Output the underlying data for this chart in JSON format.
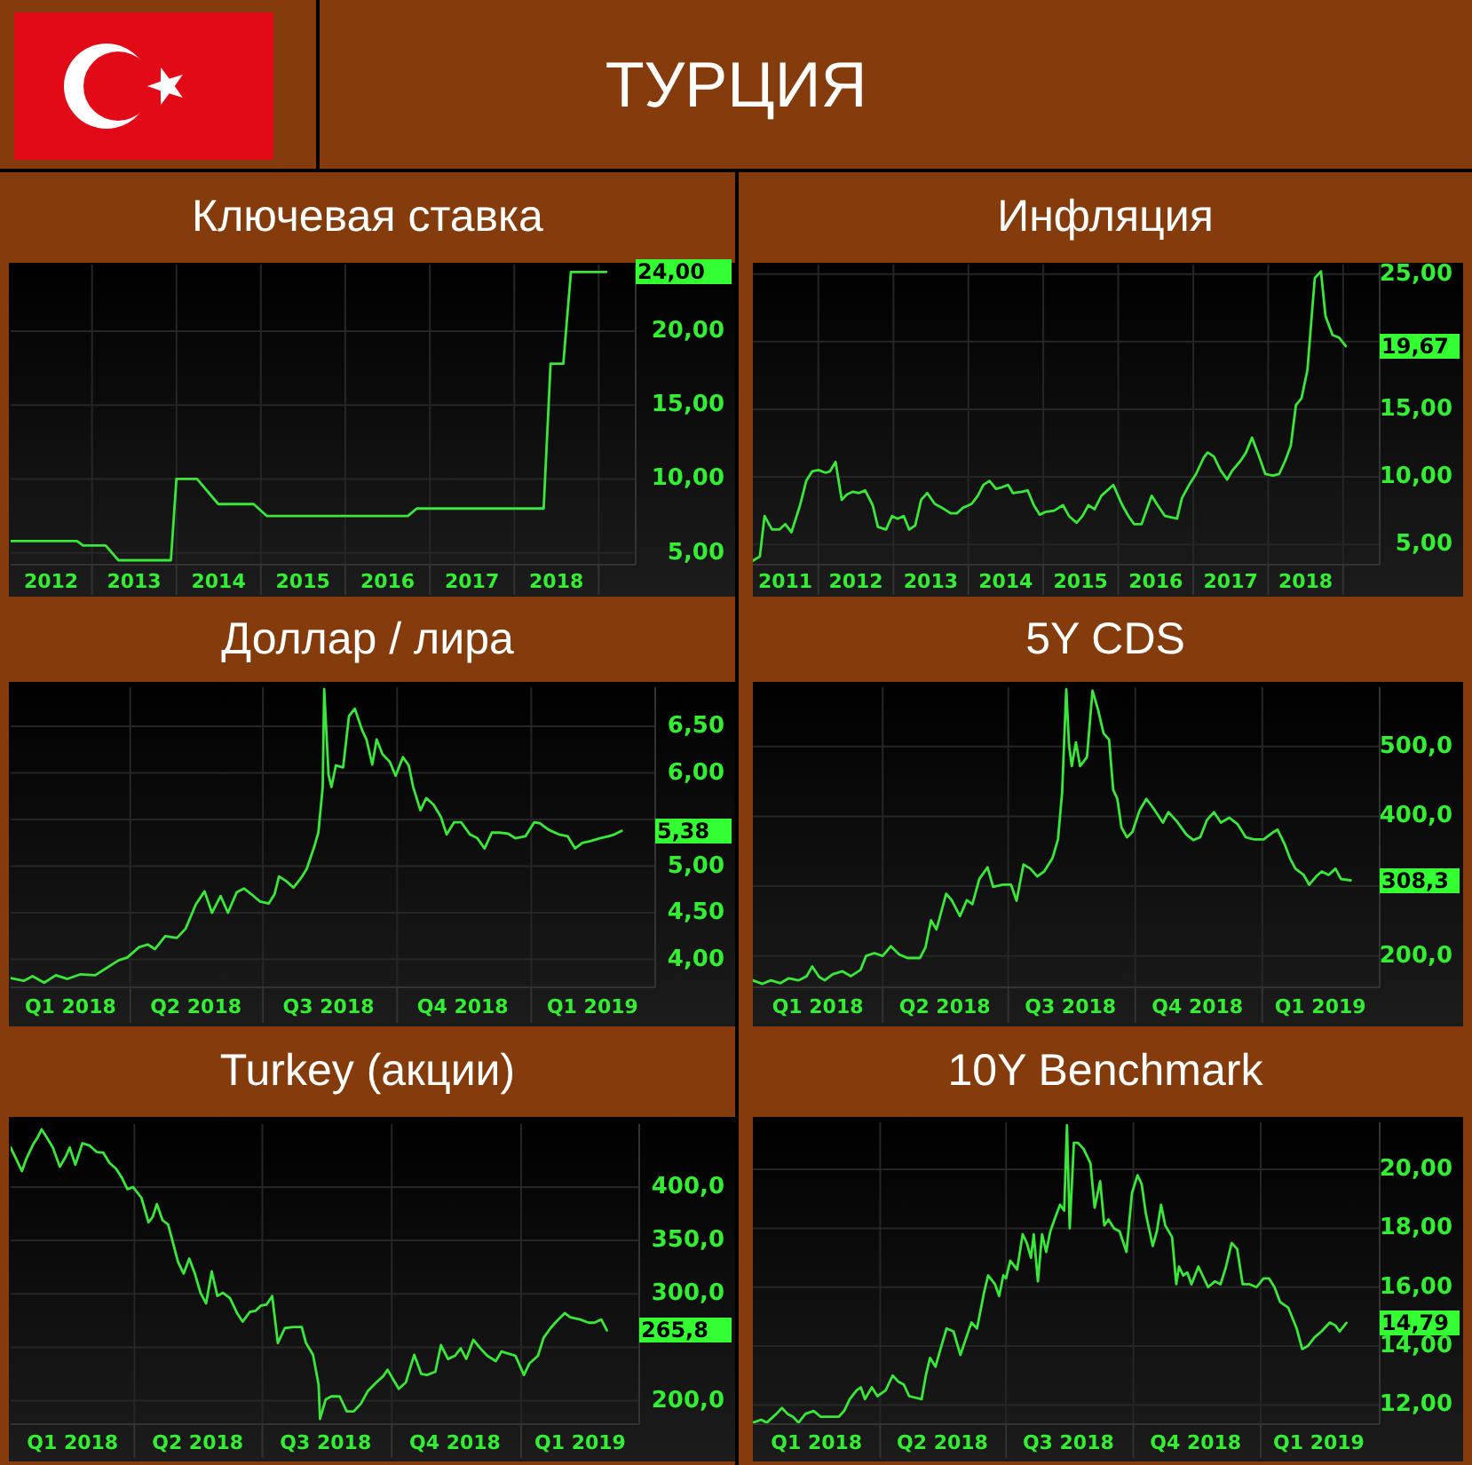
{
  "chart_data": [
    {
      "type": "other",
      "title": "ТУРЦИЯ"
    },
    {
      "type": "line",
      "title": "Ключевая ставка",
      "color": "#3ae83a",
      "grid": true,
      "x": [
        "2012-01-15",
        "2012-10-28",
        "2012-11-23",
        "2013-03-01",
        "2013-04-25",
        "2013-12-08",
        "2014-01-01",
        "2014-03-31",
        "2014-07-01",
        "2014-12-01",
        "2015-01-26",
        "2016-09-28",
        "2016-11-05",
        "2018-05-08",
        "2018-06-07",
        "2018-08-01",
        "2018-09-03",
        "2019-02-03"
      ],
      "values": [
        5.8,
        5.8,
        5.5,
        5.5,
        4.5,
        4.5,
        10,
        10,
        8.3,
        8.3,
        7.5,
        7.5,
        8,
        8,
        17.8,
        17.8,
        24,
        24
      ],
      "value_labels": [
        null,
        null,
        null,
        null,
        null,
        null,
        null,
        null,
        null,
        null,
        null,
        null,
        null,
        null,
        null,
        null,
        null,
        "24,00"
      ],
      "xlim": [
        "2012-01-15",
        "2019-06-10"
      ],
      "xticks": [
        {
          "value": "2012-07-08",
          "label": "2012"
        },
        {
          "value": "2013-01-01",
          "label": null
        },
        {
          "value": "2013-07-02",
          "label": "2013"
        },
        {
          "value": "2014-01-01",
          "label": null
        },
        {
          "value": "2014-07-02",
          "label": "2014"
        },
        {
          "value": "2015-01-01",
          "label": null
        },
        {
          "value": "2015-07-02",
          "label": "2015"
        },
        {
          "value": "2016-01-01",
          "label": null
        },
        {
          "value": "2016-07-02",
          "label": "2016"
        },
        {
          "value": "2017-01-01",
          "label": null
        },
        {
          "value": "2017-07-02",
          "label": "2017"
        },
        {
          "value": "2018-01-01",
          "label": null
        },
        {
          "value": "2018-07-02",
          "label": "2018"
        },
        {
          "value": "2019-01-01",
          "label": null
        }
      ],
      "ylim": [
        4.2,
        24.5
      ],
      "yticks": [
        {
          "value": 5,
          "label": "5,00"
        },
        {
          "value": 10,
          "label": "10,00"
        },
        {
          "value": 15,
          "label": "15,00"
        },
        {
          "value": 20,
          "label": "20,00"
        }
      ]
    },
    {
      "type": "line",
      "title": "Инфляция",
      "color": "#3ae83a",
      "grid": true,
      "x": [
        "2011-02-16",
        "2011-03-22",
        "2011-04-14",
        "2011-05-20",
        "2011-06-25",
        "2011-07-24",
        "2011-08-23",
        "2011-10-04",
        "2011-11-03",
        "2011-12-02",
        "2012-01-01",
        "2012-02-06",
        "2012-02-26",
        "2012-03-25",
        "2012-04-24",
        "2012-05-20",
        "2012-06-18",
        "2012-07-17",
        "2012-08-16",
        "2012-09-22",
        "2012-10-17",
        "2012-11-26",
        "2012-12-25",
        "2013-01-21",
        "2013-02-20",
        "2013-03-19",
        "2013-04-17",
        "2013-05-16",
        "2013-06-15",
        "2013-07-21",
        "2013-08-26",
        "2013-10-07",
        "2013-11-06",
        "2013-12-05",
        "2014-01-17",
        "2014-02-16",
        "2014-03-15",
        "2014-04-14",
        "2014-05-16",
        "2014-06-08",
        "2014-07-14",
        "2014-08-06",
        "2014-09-18",
        "2014-10-17",
        "2014-11-16",
        "2014-12-15",
        "2015-01-11",
        "2015-02-23",
        "2015-04-07",
        "2015-05-06",
        "2015-06-12",
        "2015-07-11",
        "2015-08-09",
        "2015-09-08",
        "2015-10-11",
        "2015-12-08",
        "2016-01-21",
        "2016-02-20",
        "2016-03-19",
        "2016-04-24",
        "2016-06-12",
        "2016-07-11",
        "2016-08-16",
        "2016-10-14",
        "2016-11-06",
        "2016-12-15",
        "2017-01-14",
        "2017-02-20",
        "2017-03-12",
        "2017-04-11",
        "2017-05-13",
        "2017-06-15",
        "2017-07-07",
        "2017-08-20",
        "2017-09-15",
        "2017-10-14",
        "2017-11-13",
        "2017-12-18",
        "2018-01-24",
        "2018-02-23",
        "2018-03-25",
        "2018-04-21",
        "2018-05-16",
        "2018-06-12",
        "2018-07-11",
        "2018-08-03",
        "2018-08-16",
        "2018-09-15",
        "2018-10-07",
        "2018-11-10",
        "2018-12-12",
        "2019-01-14"
      ],
      "values": [
        3.8,
        4.1,
        7.1,
        6.1,
        6.1,
        6.5,
        5.9,
        7.9,
        9.7,
        10.4,
        10.5,
        10.3,
        10.4,
        11.1,
        8.3,
        8.7,
        8.9,
        8.8,
        9.0,
        7.9,
        6.3,
        6.1,
        7.1,
        6.9,
        7.1,
        6.1,
        6.4,
        8.3,
        8.8,
        8.0,
        7.7,
        7.3,
        7.3,
        7.7,
        8.0,
        8.6,
        9.4,
        9.7,
        9.1,
        9.2,
        9.4,
        8.8,
        8.9,
        9.0,
        7.9,
        7.2,
        7.4,
        7.5,
        7.9,
        7.1,
        6.6,
        7.1,
        7.9,
        7.6,
        8.6,
        9.4,
        7.9,
        7.1,
        6.5,
        6.5,
        8.6,
        7.9,
        7.1,
        6.9,
        8.4,
        9.5,
        10.2,
        11.4,
        11.8,
        11.5,
        10.5,
        9.8,
        10.4,
        11.2,
        11.8,
        12.9,
        11.7,
        10.2,
        10.1,
        10.2,
        11.2,
        12.3,
        15.3,
        15.8,
        17.9,
        22.3,
        24.7,
        25.2,
        21.9,
        20.5,
        20.3,
        19.67
      ],
      "value_labels": [
        null,
        null,
        null,
        null,
        null,
        null,
        null,
        null,
        null,
        null,
        null,
        null,
        null,
        null,
        null,
        null,
        null,
        null,
        null,
        null,
        null,
        null,
        null,
        null,
        null,
        null,
        null,
        null,
        null,
        null,
        null,
        null,
        null,
        null,
        null,
        null,
        null,
        null,
        null,
        null,
        null,
        null,
        null,
        null,
        null,
        null,
        null,
        null,
        null,
        null,
        null,
        null,
        null,
        null,
        null,
        null,
        null,
        null,
        null,
        null,
        null,
        null,
        null,
        null,
        null,
        null,
        null,
        null,
        null,
        null,
        null,
        null,
        null,
        null,
        null,
        null,
        null,
        null,
        null,
        null,
        null,
        null,
        null,
        null,
        null,
        null,
        null,
        null,
        null,
        null,
        null,
        "19,67"
      ],
      "xlim": [
        "2011-02-16",
        "2019-06-28"
      ],
      "xticks": [
        {
          "value": "2011-07-24",
          "label": "2011"
        },
        {
          "value": "2012-01-01",
          "label": null
        },
        {
          "value": "2012-07-02",
          "label": "2012"
        },
        {
          "value": "2013-01-01",
          "label": null
        },
        {
          "value": "2013-07-02",
          "label": "2013"
        },
        {
          "value": "2014-01-01",
          "label": null
        },
        {
          "value": "2014-07-02",
          "label": "2014"
        },
        {
          "value": "2015-01-01",
          "label": null
        },
        {
          "value": "2015-07-02",
          "label": "2015"
        },
        {
          "value": "2016-01-01",
          "label": null
        },
        {
          "value": "2016-07-02",
          "label": "2016"
        },
        {
          "value": "2017-01-01",
          "label": null
        },
        {
          "value": "2017-07-02",
          "label": "2017"
        },
        {
          "value": "2018-01-01",
          "label": null
        },
        {
          "value": "2018-07-02",
          "label": "2018"
        },
        {
          "value": "2019-01-01",
          "label": null
        }
      ],
      "ylim": [
        3.5,
        25.7
      ],
      "yticks": [
        {
          "value": 5,
          "label": "5,00"
        },
        {
          "value": 10,
          "label": "10,00"
        },
        {
          "value": 15,
          "label": "15,00"
        },
        {
          "value": 20,
          "label": null
        },
        {
          "value": 25,
          "label": "25,00"
        }
      ]
    },
    {
      "type": "line",
      "title": "Доллар / лира",
      "color": "#3ae83a",
      "grid": true,
      "x": [
        "2018-01-09",
        "2018-01-18",
        "2018-01-24",
        "2018-02-01",
        "2018-02-09",
        "2018-02-17",
        "2018-02-26",
        "2018-03-08",
        "2018-03-16",
        "2018-03-24",
        "2018-03-30",
        "2018-04-07",
        "2018-04-13",
        "2018-04-18",
        "2018-04-25",
        "2018-05-03",
        "2018-05-09",
        "2018-05-16",
        "2018-05-22",
        "2018-05-27",
        "2018-06-02",
        "2018-06-07",
        "2018-06-13",
        "2018-06-18",
        "2018-06-23",
        "2018-06-29",
        "2018-07-05",
        "2018-07-09",
        "2018-07-12",
        "2018-07-17",
        "2018-07-22",
        "2018-07-27",
        "2018-07-31",
        "2018-08-05",
        "2018-08-08",
        "2018-08-11",
        "2018-08-12",
        "2018-08-15",
        "2018-08-17",
        "2018-08-20",
        "2018-08-25",
        "2018-08-29",
        "2018-09-02",
        "2018-09-07",
        "2018-09-10",
        "2018-09-14",
        "2018-09-17",
        "2018-09-21",
        "2018-09-26",
        "2018-09-30",
        "2018-10-05",
        "2018-10-09",
        "2018-10-12",
        "2018-10-17",
        "2018-10-21",
        "2018-10-26",
        "2018-10-31",
        "2018-11-04",
        "2018-11-09",
        "2018-11-14",
        "2018-11-20",
        "2018-11-25",
        "2018-11-30",
        "2018-12-05",
        "2018-12-10",
        "2018-12-16",
        "2018-12-21",
        "2018-12-28",
        "2019-01-03",
        "2019-01-07",
        "2019-01-13",
        "2019-01-20",
        "2019-01-26",
        "2019-01-31",
        "2019-02-05",
        "2019-02-11",
        "2019-02-17",
        "2019-02-23",
        "2019-02-27",
        "2019-03-04"
      ],
      "values": [
        3.8,
        3.77,
        3.82,
        3.75,
        3.83,
        3.79,
        3.84,
        3.83,
        3.91,
        3.99,
        4.02,
        4.13,
        4.16,
        4.11,
        4.25,
        4.23,
        4.33,
        4.59,
        4.73,
        4.5,
        4.68,
        4.5,
        4.72,
        4.76,
        4.7,
        4.62,
        4.6,
        4.7,
        4.89,
        4.84,
        4.77,
        4.87,
        4.97,
        5.2,
        5.36,
        5.85,
        6.9,
        5.98,
        5.85,
        6.08,
        6.06,
        6.61,
        6.69,
        6.46,
        6.36,
        6.09,
        6.36,
        6.2,
        6.12,
        5.97,
        6.17,
        6.08,
        5.85,
        5.6,
        5.73,
        5.66,
        5.53,
        5.34,
        5.47,
        5.47,
        5.34,
        5.3,
        5.19,
        5.36,
        5.36,
        5.35,
        5.3,
        5.32,
        5.47,
        5.46,
        5.39,
        5.34,
        5.32,
        5.19,
        5.25,
        5.27,
        5.3,
        5.32,
        5.34,
        5.38
      ],
      "value_labels": [
        null,
        null,
        null,
        null,
        null,
        null,
        null,
        null,
        null,
        null,
        null,
        null,
        null,
        null,
        null,
        null,
        null,
        null,
        null,
        null,
        null,
        null,
        null,
        null,
        null,
        null,
        null,
        null,
        null,
        null,
        null,
        null,
        null,
        null,
        null,
        null,
        null,
        null,
        null,
        null,
        null,
        null,
        null,
        null,
        null,
        null,
        null,
        null,
        null,
        null,
        null,
        null,
        null,
        null,
        null,
        null,
        null,
        null,
        null,
        null,
        null,
        null,
        null,
        null,
        null,
        null,
        null,
        null,
        null,
        null,
        null,
        null,
        null,
        null,
        null,
        null,
        null,
        null,
        null,
        "5,38"
      ],
      "xlim": [
        "2018-01-09",
        "2019-03-27"
      ],
      "xticks": [
        {
          "value": "2018-02-19",
          "label": "Q1 2018"
        },
        {
          "value": "2018-04-01",
          "label": null
        },
        {
          "value": "2018-05-16",
          "label": "Q2 2018"
        },
        {
          "value": "2018-07-01",
          "label": null
        },
        {
          "value": "2018-08-15",
          "label": "Q3 2018"
        },
        {
          "value": "2018-10-01",
          "label": null
        },
        {
          "value": "2018-11-15",
          "label": "Q4 2018"
        },
        {
          "value": "2019-01-01",
          "label": null
        },
        {
          "value": "2019-02-12",
          "label": "Q1 2019"
        }
      ],
      "ylim": [
        3.7,
        6.92
      ],
      "yticks": [
        {
          "value": 4,
          "label": "4,00"
        },
        {
          "value": 4.5,
          "label": "4,50"
        },
        {
          "value": 5,
          "label": "5,00"
        },
        {
          "value": 5.5,
          "label": null
        },
        {
          "value": 6,
          "label": "6,00"
        },
        {
          "value": 6.5,
          "label": "6,50"
        }
      ]
    },
    {
      "type": "line",
      "title": "5Y CDS",
      "color": "#3ae83a",
      "grid": true,
      "x": [
        "2017-12-28",
        "2018-01-04",
        "2018-01-10",
        "2018-01-17",
        "2018-01-23",
        "2018-01-30",
        "2018-02-05",
        "2018-02-09",
        "2018-02-14",
        "2018-02-18",
        "2018-02-24",
        "2018-03-03",
        "2018-03-09",
        "2018-03-16",
        "2018-03-20",
        "2018-03-26",
        "2018-04-01",
        "2018-04-07",
        "2018-04-13",
        "2018-04-19",
        "2018-04-28",
        "2018-05-02",
        "2018-05-06",
        "2018-05-10",
        "2018-05-17",
        "2018-05-21",
        "2018-05-27",
        "2018-06-01",
        "2018-06-05",
        "2018-06-10",
        "2018-06-16",
        "2018-06-20",
        "2018-06-27",
        "2018-07-03",
        "2018-07-07",
        "2018-07-12",
        "2018-07-17",
        "2018-07-22",
        "2018-07-27",
        "2018-08-02",
        "2018-08-06",
        "2018-08-09",
        "2018-08-12",
        "2018-08-14",
        "2018-08-16",
        "2018-08-19",
        "2018-08-22",
        "2018-08-27",
        "2018-08-31",
        "2018-09-04",
        "2018-09-08",
        "2018-09-12",
        "2018-09-15",
        "2018-09-18",
        "2018-09-21",
        "2018-09-25",
        "2018-09-29",
        "2018-10-04",
        "2018-10-09",
        "2018-10-14",
        "2018-10-21",
        "2018-10-25",
        "2018-10-31",
        "2018-11-07",
        "2018-11-12",
        "2018-11-17",
        "2018-11-22",
        "2018-11-27",
        "2018-12-02",
        "2018-12-08",
        "2018-12-14",
        "2018-12-20",
        "2018-12-26",
        "2019-01-02",
        "2019-01-08",
        "2019-01-12",
        "2019-01-17",
        "2019-01-21",
        "2019-01-25",
        "2019-01-31",
        "2019-02-04",
        "2019-02-09",
        "2019-02-13",
        "2019-02-18",
        "2019-02-23",
        "2019-02-27",
        "2019-03-06"
      ],
      "values": [
        165,
        160,
        165,
        161,
        168,
        165,
        171,
        185,
        170,
        165,
        174,
        178,
        171,
        180,
        200,
        204,
        200,
        214,
        202,
        197,
        197,
        212,
        251,
        238,
        289,
        280,
        257,
        280,
        274,
        310,
        327,
        299,
        302,
        302,
        279,
        331,
        325,
        314,
        321,
        340,
        367,
        434,
        582,
        502,
        472,
        506,
        472,
        485,
        580,
        553,
        519,
        510,
        438,
        425,
        384,
        370,
        378,
        408,
        425,
        412,
        391,
        406,
        393,
        374,
        366,
        370,
        395,
        406,
        391,
        398,
        389,
        370,
        367,
        367,
        376,
        381,
        361,
        340,
        325,
        316,
        302,
        314,
        321,
        316,
        325,
        310,
        308.3
      ],
      "value_labels": [
        null,
        null,
        null,
        null,
        null,
        null,
        null,
        null,
        null,
        null,
        null,
        null,
        null,
        null,
        null,
        null,
        null,
        null,
        null,
        null,
        null,
        null,
        null,
        null,
        null,
        null,
        null,
        null,
        null,
        null,
        null,
        null,
        null,
        null,
        null,
        null,
        null,
        null,
        null,
        null,
        null,
        null,
        null,
        null,
        null,
        null,
        null,
        null,
        null,
        null,
        null,
        null,
        null,
        null,
        null,
        null,
        null,
        null,
        null,
        null,
        null,
        null,
        null,
        null,
        null,
        null,
        null,
        null,
        null,
        null,
        null,
        null,
        null,
        null,
        null,
        null,
        null,
        null,
        null,
        null,
        null,
        null,
        null,
        null,
        null,
        null,
        "308,3"
      ],
      "xlim": [
        "2017-12-28",
        "2019-03-27"
      ],
      "xticks": [
        {
          "value": "2018-02-13",
          "label": "Q1 2018"
        },
        {
          "value": "2018-04-01",
          "label": null
        },
        {
          "value": "2018-05-16",
          "label": "Q2 2018"
        },
        {
          "value": "2018-07-01",
          "label": null
        },
        {
          "value": "2018-08-15",
          "label": "Q3 2018"
        },
        {
          "value": "2018-10-01",
          "label": null
        },
        {
          "value": "2018-11-15",
          "label": "Q4 2018"
        },
        {
          "value": "2019-01-01",
          "label": null
        },
        {
          "value": "2019-02-12",
          "label": "Q1 2019"
        }
      ],
      "ylim": [
        155,
        585
      ],
      "yticks": [
        {
          "value": 200,
          "label": "200,0"
        },
        {
          "value": 300,
          "label": null
        },
        {
          "value": 400,
          "label": "400,0"
        },
        {
          "value": 500,
          "label": "500,0"
        }
      ]
    },
    {
      "type": "line",
      "title": "Turkey (акции)",
      "color": "#3ae83a",
      "grid": true,
      "x": [
        "2018-01-03",
        "2018-01-07",
        "2018-01-11",
        "2018-01-14",
        "2018-01-19",
        "2018-01-22",
        "2018-01-25",
        "2018-01-28",
        "2018-02-02",
        "2018-02-07",
        "2018-02-11",
        "2018-02-14",
        "2018-02-18",
        "2018-02-23",
        "2018-02-28",
        "2018-03-05",
        "2018-03-10",
        "2018-03-14",
        "2018-03-19",
        "2018-03-23",
        "2018-03-27",
        "2018-03-31",
        "2018-04-06",
        "2018-04-11",
        "2018-04-14",
        "2018-04-17",
        "2018-04-21",
        "2018-04-25",
        "2018-05-02",
        "2018-05-06",
        "2018-05-10",
        "2018-05-14",
        "2018-05-18",
        "2018-05-22",
        "2018-05-26",
        "2018-05-30",
        "2018-06-03",
        "2018-06-08",
        "2018-06-13",
        "2018-06-17",
        "2018-06-22",
        "2018-06-26",
        "2018-06-30",
        "2018-07-04",
        "2018-07-08",
        "2018-07-12",
        "2018-07-17",
        "2018-07-23",
        "2018-07-29",
        "2018-08-01",
        "2018-08-06",
        "2018-08-10",
        "2018-08-11",
        "2018-08-15",
        "2018-08-19",
        "2018-08-25",
        "2018-08-30",
        "2018-09-04",
        "2018-09-09",
        "2018-09-14",
        "2018-09-20",
        "2018-09-25",
        "2018-09-28",
        "2018-10-02",
        "2018-10-06",
        "2018-10-11",
        "2018-10-17",
        "2018-10-22",
        "2018-10-26",
        "2018-11-01",
        "2018-11-05",
        "2018-11-10",
        "2018-11-15",
        "2018-11-19",
        "2018-11-23",
        "2018-11-28",
        "2018-12-03",
        "2018-12-08",
        "2018-12-14",
        "2018-12-18",
        "2018-12-23",
        "2018-12-28",
        "2019-01-03",
        "2019-01-07",
        "2019-01-13",
        "2019-01-17",
        "2019-01-22",
        "2019-01-26",
        "2019-02-01",
        "2019-02-05",
        "2019-02-12",
        "2019-02-18",
        "2019-02-22",
        "2019-02-27",
        "2019-03-03"
      ],
      "values": [
        437,
        426,
        415,
        426,
        440,
        446,
        454,
        448,
        437,
        419,
        428,
        437,
        421,
        441,
        439,
        433,
        432,
        423,
        417,
        409,
        398,
        400,
        390,
        367,
        372,
        384,
        369,
        365,
        330,
        319,
        333,
        319,
        301,
        291,
        321,
        298,
        301,
        296,
        282,
        274,
        283,
        284,
        289,
        290,
        298,
        254,
        268,
        269,
        269,
        254,
        243,
        215,
        183,
        201,
        204,
        204,
        190,
        190,
        197,
        209,
        217,
        223,
        229,
        220,
        211,
        217,
        243,
        225,
        224,
        227,
        252,
        239,
        242,
        249,
        239,
        257,
        249,
        242,
        237,
        246,
        244,
        242,
        224,
        235,
        242,
        259,
        268,
        274,
        282,
        278,
        276,
        273,
        273,
        276,
        265.8
      ],
      "value_labels": [
        null,
        null,
        null,
        null,
        null,
        null,
        null,
        null,
        null,
        null,
        null,
        null,
        null,
        null,
        null,
        null,
        null,
        null,
        null,
        null,
        null,
        null,
        null,
        null,
        null,
        null,
        null,
        null,
        null,
        null,
        null,
        null,
        null,
        null,
        null,
        null,
        null,
        null,
        null,
        null,
        null,
        null,
        null,
        null,
        null,
        null,
        null,
        null,
        null,
        null,
        null,
        null,
        null,
        null,
        null,
        null,
        null,
        null,
        null,
        null,
        null,
        null,
        null,
        null,
        null,
        null,
        null,
        null,
        null,
        null,
        null,
        null,
        null,
        null,
        null,
        null,
        null,
        null,
        null,
        null,
        null,
        null,
        null,
        null,
        null,
        null,
        null,
        null,
        null,
        null,
        null,
        null,
        null,
        null,
        "265,8"
      ],
      "xlim": [
        "2018-01-03",
        "2019-03-26"
      ],
      "xticks": [
        {
          "value": "2018-02-16",
          "label": "Q1 2018"
        },
        {
          "value": "2018-04-01",
          "label": null
        },
        {
          "value": "2018-05-16",
          "label": "Q2 2018"
        },
        {
          "value": "2018-07-01",
          "label": null
        },
        {
          "value": "2018-08-15",
          "label": "Q3 2018"
        },
        {
          "value": "2018-10-01",
          "label": null
        },
        {
          "value": "2018-11-15",
          "label": "Q4 2018"
        },
        {
          "value": "2019-01-01",
          "label": null
        },
        {
          "value": "2019-02-12",
          "label": "Q1 2019"
        }
      ],
      "ylim": [
        178,
        459
      ],
      "yticks": [
        {
          "value": 200,
          "label": "200,0"
        },
        {
          "value": 250,
          "label": null
        },
        {
          "value": 300,
          "label": "300,0"
        },
        {
          "value": 350,
          "label": "350,0"
        },
        {
          "value": 400,
          "label": "400,0"
        }
      ]
    },
    {
      "type": "line",
      "title": "10Y Benchmark",
      "color": "#3ae83a",
      "grid": true,
      "x": [
        "2017-12-30",
        "2018-01-05",
        "2018-01-09",
        "2018-01-16",
        "2018-01-20",
        "2018-01-24",
        "2018-01-28",
        "2018-02-01",
        "2018-02-06",
        "2018-02-12",
        "2018-02-17",
        "2018-02-23",
        "2018-03-02",
        "2018-03-06",
        "2018-03-10",
        "2018-03-15",
        "2018-03-18",
        "2018-03-21",
        "2018-03-26",
        "2018-03-30",
        "2018-04-05",
        "2018-04-10",
        "2018-04-14",
        "2018-04-18",
        "2018-04-22",
        "2018-05-01",
        "2018-05-04",
        "2018-05-07",
        "2018-05-11",
        "2018-05-14",
        "2018-05-19",
        "2018-05-24",
        "2018-05-29",
        "2018-06-03",
        "2018-06-06",
        "2018-06-10",
        "2018-06-15",
        "2018-06-18",
        "2018-06-23",
        "2018-06-26",
        "2018-06-29",
        "2018-07-01",
        "2018-07-04",
        "2018-07-09",
        "2018-07-13",
        "2018-07-16",
        "2018-07-19",
        "2018-07-21",
        "2018-07-24",
        "2018-07-27",
        "2018-07-30",
        "2018-08-02",
        "2018-08-05",
        "2018-08-09",
        "2018-08-12",
        "2018-08-14",
        "2018-08-16",
        "2018-08-19",
        "2018-08-22",
        "2018-08-26",
        "2018-08-31",
        "2018-09-03",
        "2018-09-07",
        "2018-09-10",
        "2018-09-13",
        "2018-09-17",
        "2018-09-21",
        "2018-09-26",
        "2018-09-30",
        "2018-10-04",
        "2018-10-07",
        "2018-10-10",
        "2018-10-15",
        "2018-10-18",
        "2018-10-21",
        "2018-10-24",
        "2018-10-29",
        "2018-11-01",
        "2018-11-03",
        "2018-11-06",
        "2018-11-09",
        "2018-11-12",
        "2018-11-17",
        "2018-11-20",
        "2018-11-24",
        "2018-11-29",
        "2018-12-03",
        "2018-12-07",
        "2018-12-11",
        "2018-12-15",
        "2018-12-19",
        "2018-12-24",
        "2018-12-29",
        "2019-01-03",
        "2019-01-07",
        "2019-01-11",
        "2019-01-15",
        "2019-01-21",
        "2019-01-27",
        "2019-01-31",
        "2019-02-04",
        "2019-02-09",
        "2019-02-14",
        "2019-02-20",
        "2019-02-24",
        "2019-02-27",
        "2019-03-04"
      ],
      "values": [
        11.4,
        11.5,
        11.4,
        11.7,
        11.9,
        11.7,
        11.6,
        11.4,
        11.7,
        11.8,
        11.6,
        11.6,
        11.6,
        11.8,
        12.2,
        12.5,
        12.6,
        12.2,
        12.6,
        12.3,
        12.5,
        13.0,
        12.8,
        12.7,
        12.3,
        12.2,
        13.0,
        13.6,
        13.3,
        13.8,
        14.6,
        14.5,
        13.7,
        14.4,
        14.8,
        14.6,
        15.8,
        16.4,
        16.1,
        15.7,
        16.4,
        16.3,
        16.9,
        16.6,
        17.8,
        17.5,
        17.0,
        17.8,
        16.2,
        17.8,
        17.2,
        17.9,
        18.3,
        18.8,
        18.6,
        21.5,
        18.0,
        20.9,
        20.9,
        20.7,
        20.2,
        18.7,
        19.6,
        18.1,
        18.3,
        18.0,
        17.9,
        17.2,
        19.2,
        19.8,
        19.5,
        18.5,
        17.4,
        17.9,
        18.8,
        18.1,
        17.7,
        16.1,
        16.7,
        16.4,
        16.5,
        16.1,
        16.7,
        16.4,
        16.0,
        16.2,
        16.1,
        16.7,
        17.5,
        17.3,
        16.1,
        16.1,
        16.0,
        16.3,
        16.3,
        16.0,
        15.5,
        15.3,
        14.6,
        13.9,
        14.0,
        14.3,
        14.5,
        14.8,
        14.7,
        14.5,
        14.79
      ],
      "value_labels": [
        null,
        null,
        null,
        null,
        null,
        null,
        null,
        null,
        null,
        null,
        null,
        null,
        null,
        null,
        null,
        null,
        null,
        null,
        null,
        null,
        null,
        null,
        null,
        null,
        null,
        null,
        null,
        null,
        null,
        null,
        null,
        null,
        null,
        null,
        null,
        null,
        null,
        null,
        null,
        null,
        null,
        null,
        null,
        null,
        null,
        null,
        null,
        null,
        null,
        null,
        null,
        null,
        null,
        null,
        null,
        null,
        null,
        null,
        null,
        null,
        null,
        null,
        null,
        null,
        null,
        null,
        null,
        null,
        null,
        null,
        null,
        null,
        null,
        null,
        null,
        null,
        null,
        null,
        null,
        null,
        null,
        null,
        null,
        null,
        null,
        null,
        null,
        null,
        null,
        null,
        null,
        null,
        null,
        null,
        null,
        null,
        null,
        null,
        null,
        null,
        null,
        null,
        null,
        null,
        null,
        null,
        "14,79"
      ],
      "xlim": [
        "2017-12-30",
        "2019-03-28"
      ],
      "xticks": [
        {
          "value": "2018-02-14",
          "label": "Q1 2018"
        },
        {
          "value": "2018-04-01",
          "label": null
        },
        {
          "value": "2018-05-16",
          "label": "Q2 2018"
        },
        {
          "value": "2018-07-01",
          "label": null
        },
        {
          "value": "2018-08-15",
          "label": "Q3 2018"
        },
        {
          "value": "2018-10-01",
          "label": null
        },
        {
          "value": "2018-11-15",
          "label": "Q4 2018"
        },
        {
          "value": "2019-01-01",
          "label": null
        },
        {
          "value": "2019-02-12",
          "label": "Q1 2019"
        }
      ],
      "ylim": [
        11.35,
        21.6
      ],
      "yticks": [
        {
          "value": 12,
          "label": "12,00"
        },
        {
          "value": 14,
          "label": "14,00"
        },
        {
          "value": 16,
          "label": "16,00"
        },
        {
          "value": 18,
          "label": "18,00"
        },
        {
          "value": 20,
          "label": "20,00"
        }
      ]
    }
  ]
}
